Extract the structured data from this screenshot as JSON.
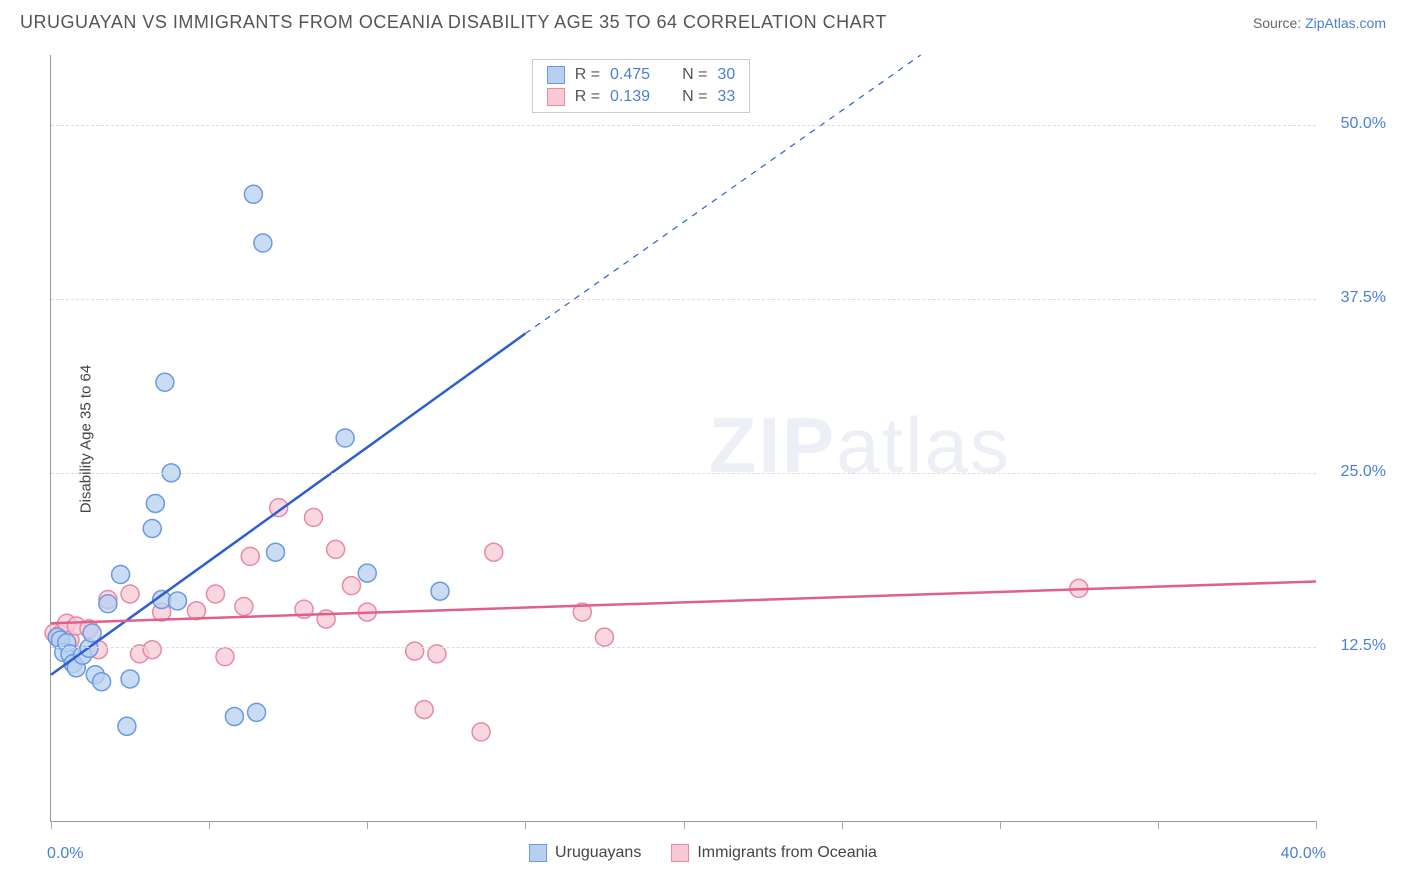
{
  "header": {
    "title": "URUGUAYAN VS IMMIGRANTS FROM OCEANIA DISABILITY AGE 35 TO 64 CORRELATION CHART",
    "source_label": "Source: ",
    "source_name": "ZipAtlas.com"
  },
  "chart": {
    "type": "scatter",
    "y_axis_label": "Disability Age 35 to 64",
    "xlim": [
      0,
      40
    ],
    "ylim": [
      0,
      55
    ],
    "x_ticks": [
      0,
      5,
      10,
      15,
      20,
      25,
      30,
      35,
      40
    ],
    "x_tick_labels_shown": {
      "0": "0.0%",
      "40": "40.0%"
    },
    "y_gridlines": [
      12.5,
      25.0,
      37.5,
      50.0
    ],
    "y_tick_labels": [
      "12.5%",
      "25.0%",
      "37.5%",
      "50.0%"
    ],
    "background_color": "#ffffff",
    "grid_color": "#dddddd",
    "axis_color": "#999999",
    "tick_label_color": "#4a7fd8",
    "watermark": "ZIPatlas",
    "series": [
      {
        "name": "Uruguayans",
        "marker_fill": "#b8d0f0",
        "marker_stroke": "#6a9ae0",
        "marker_radius": 9,
        "line_color": "#2c5fd0",
        "line_width": 2.5,
        "regression_solid": {
          "x1": 0,
          "y1": 10.5,
          "x2": 15,
          "y2": 35
        },
        "regression_dashed": {
          "x1": 15,
          "y1": 35,
          "x2": 27.5,
          "y2": 55
        },
        "points": [
          [
            0.2,
            13.2
          ],
          [
            0.3,
            13.0
          ],
          [
            0.4,
            12.1
          ],
          [
            0.5,
            12.8
          ],
          [
            0.6,
            12.0
          ],
          [
            0.7,
            11.3
          ],
          [
            0.8,
            11.0
          ],
          [
            1.0,
            11.9
          ],
          [
            1.2,
            12.4
          ],
          [
            1.3,
            13.5
          ],
          [
            1.4,
            10.5
          ],
          [
            1.6,
            10.0
          ],
          [
            1.8,
            15.6
          ],
          [
            2.2,
            17.7
          ],
          [
            2.4,
            6.8
          ],
          [
            2.5,
            10.2
          ],
          [
            3.2,
            21.0
          ],
          [
            3.3,
            22.8
          ],
          [
            3.5,
            15.9
          ],
          [
            3.6,
            31.5
          ],
          [
            3.8,
            25.0
          ],
          [
            4.0,
            15.8
          ],
          [
            5.8,
            7.5
          ],
          [
            6.4,
            45.0
          ],
          [
            6.5,
            7.8
          ],
          [
            6.7,
            41.5
          ],
          [
            7.1,
            19.3
          ],
          [
            9.3,
            27.5
          ],
          [
            10.0,
            17.8
          ],
          [
            12.3,
            16.5
          ]
        ]
      },
      {
        "name": "Immigrants from Oceania",
        "marker_fill": "#f7c9d4",
        "marker_stroke": "#e88aa5",
        "marker_radius": 9,
        "line_color": "#e15f8c",
        "line_width": 2.5,
        "regression_solid": {
          "x1": 0,
          "y1": 14.2,
          "x2": 40,
          "y2": 17.2
        },
        "points": [
          [
            0.1,
            13.5
          ],
          [
            0.2,
            13.2
          ],
          [
            0.3,
            13.4
          ],
          [
            0.5,
            14.2
          ],
          [
            0.6,
            13.0
          ],
          [
            0.8,
            14.0
          ],
          [
            1.2,
            13.8
          ],
          [
            1.5,
            12.3
          ],
          [
            1.8,
            15.9
          ],
          [
            2.5,
            16.3
          ],
          [
            2.8,
            12.0
          ],
          [
            3.2,
            12.3
          ],
          [
            3.5,
            15.0
          ],
          [
            4.6,
            15.1
          ],
          [
            5.2,
            16.3
          ],
          [
            5.5,
            11.8
          ],
          [
            6.1,
            15.4
          ],
          [
            6.3,
            19.0
          ],
          [
            7.2,
            22.5
          ],
          [
            8.0,
            15.2
          ],
          [
            8.3,
            21.8
          ],
          [
            8.7,
            14.5
          ],
          [
            9.0,
            19.5
          ],
          [
            9.5,
            16.9
          ],
          [
            10.0,
            15.0
          ],
          [
            11.5,
            12.2
          ],
          [
            11.8,
            8.0
          ],
          [
            12.2,
            12.0
          ],
          [
            13.6,
            6.4
          ],
          [
            14.0,
            19.3
          ],
          [
            16.8,
            15.0
          ],
          [
            17.5,
            13.2
          ],
          [
            32.5,
            16.7
          ]
        ]
      }
    ],
    "correlation_legend": [
      {
        "r_label": "R =",
        "r": "0.475",
        "n_label": "N =",
        "n": "30",
        "swatch_fill": "#b8d0f0",
        "swatch_stroke": "#6a9ae0"
      },
      {
        "r_label": "R =",
        "r": "0.139",
        "n_label": "N =",
        "n": "33",
        "swatch_fill": "#f7c9d4",
        "swatch_stroke": "#e88aa5"
      }
    ]
  }
}
